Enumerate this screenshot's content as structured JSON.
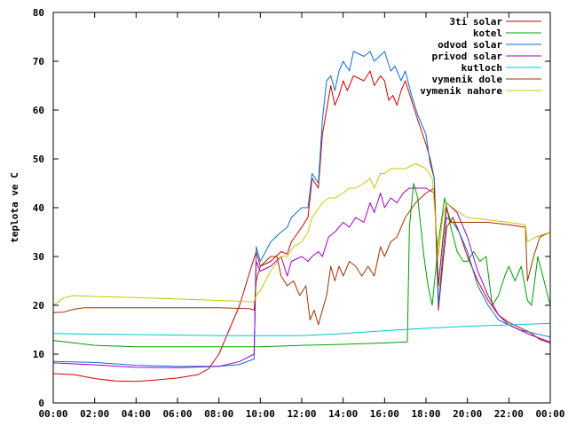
{
  "chart_data": {
    "type": "line",
    "ylabel": "teplota ve C",
    "xlabel": "",
    "title": "",
    "ylim": [
      0,
      80
    ],
    "xlim": [
      0,
      24
    ],
    "y_ticks": [
      0,
      10,
      20,
      30,
      40,
      50,
      60,
      70,
      80
    ],
    "x_ticks": [
      {
        "value": 0,
        "label": "00:00"
      },
      {
        "value": 2,
        "label": "02:00"
      },
      {
        "value": 4,
        "label": "04:00"
      },
      {
        "value": 6,
        "label": "06:00"
      },
      {
        "value": 8,
        "label": "08:00"
      },
      {
        "value": 10,
        "label": "10:00"
      },
      {
        "value": 12,
        "label": "12:00"
      },
      {
        "value": 14,
        "label": "14:00"
      },
      {
        "value": 16,
        "label": "16:00"
      },
      {
        "value": 18,
        "label": "18:00"
      },
      {
        "value": 20,
        "label": "20:00"
      },
      {
        "value": 22,
        "label": "22:00"
      },
      {
        "value": 24,
        "label": "00:00"
      }
    ],
    "grid": false,
    "legend_position": "top-right",
    "series": [
      {
        "name": "3ti solar",
        "color": "#d40000",
        "points": [
          [
            0,
            6
          ],
          [
            1,
            5.8
          ],
          [
            2,
            5
          ],
          [
            3,
            4.5
          ],
          [
            4,
            4.4
          ],
          [
            5,
            4.7
          ],
          [
            6,
            5.1
          ],
          [
            7,
            5.8
          ],
          [
            7.5,
            7
          ],
          [
            8,
            10
          ],
          [
            8.5,
            15
          ],
          [
            9,
            20
          ],
          [
            9.5,
            27
          ],
          [
            9.8,
            31
          ],
          [
            10,
            28
          ],
          [
            10.5,
            29
          ],
          [
            11,
            31
          ],
          [
            11.3,
            30.5
          ],
          [
            11.5,
            33
          ],
          [
            12,
            36
          ],
          [
            12.3,
            38
          ],
          [
            12.5,
            46
          ],
          [
            12.8,
            44
          ],
          [
            13,
            55
          ],
          [
            13.2,
            60
          ],
          [
            13.4,
            65
          ],
          [
            13.6,
            61
          ],
          [
            13.8,
            63
          ],
          [
            14,
            66
          ],
          [
            14.2,
            64
          ],
          [
            14.5,
            67
          ],
          [
            15,
            66
          ],
          [
            15.3,
            68
          ],
          [
            15.5,
            65
          ],
          [
            15.8,
            67
          ],
          [
            16,
            66
          ],
          [
            16.2,
            62
          ],
          [
            16.4,
            63
          ],
          [
            16.6,
            61
          ],
          [
            16.8,
            64
          ],
          [
            17,
            66
          ],
          [
            17.3,
            62
          ],
          [
            17.6,
            58
          ],
          [
            18,
            53
          ],
          [
            18.2,
            50
          ],
          [
            18.4,
            46
          ],
          [
            18.6,
            19
          ],
          [
            18.8,
            28
          ],
          [
            19,
            36
          ],
          [
            19.3,
            38
          ],
          [
            19.6,
            35
          ],
          [
            20,
            30
          ],
          [
            20.5,
            25
          ],
          [
            21,
            21
          ],
          [
            21.5,
            18
          ],
          [
            22,
            16.5
          ],
          [
            22.5,
            15.5
          ],
          [
            23,
            14.5
          ],
          [
            23.5,
            13
          ],
          [
            24,
            12.3
          ]
        ]
      },
      {
        "name": "kotel",
        "color": "#00a000",
        "points": [
          [
            0,
            12.8
          ],
          [
            1,
            12.3
          ],
          [
            2,
            11.8
          ],
          [
            4,
            11.5
          ],
          [
            6,
            11.5
          ],
          [
            8,
            11.5
          ],
          [
            10,
            11.5
          ],
          [
            12,
            11.8
          ],
          [
            14,
            12
          ],
          [
            16,
            12.3
          ],
          [
            17.1,
            12.5
          ],
          [
            17.2,
            36
          ],
          [
            17.4,
            45
          ],
          [
            17.6,
            42
          ],
          [
            17.9,
            30
          ],
          [
            18.1,
            24
          ],
          [
            18.3,
            20
          ],
          [
            18.6,
            33
          ],
          [
            18.9,
            42
          ],
          [
            19.2,
            36
          ],
          [
            19.5,
            31
          ],
          [
            19.8,
            29
          ],
          [
            20,
            29
          ],
          [
            20.3,
            31
          ],
          [
            20.6,
            29
          ],
          [
            20.9,
            30
          ],
          [
            21.2,
            20
          ],
          [
            21.5,
            22
          ],
          [
            21.8,
            26
          ],
          [
            22,
            28
          ],
          [
            22.3,
            25
          ],
          [
            22.6,
            28
          ],
          [
            22.9,
            21
          ],
          [
            23.1,
            20
          ],
          [
            23.4,
            30
          ],
          [
            23.7,
            25
          ],
          [
            24,
            20
          ]
        ]
      },
      {
        "name": "odvod solar",
        "color": "#0a70d0",
        "points": [
          [
            0,
            8.5
          ],
          [
            2,
            8.3
          ],
          [
            4,
            7.7
          ],
          [
            6,
            7.5
          ],
          [
            8,
            7.5
          ],
          [
            9,
            7.9
          ],
          [
            9.7,
            9
          ],
          [
            9.8,
            32
          ],
          [
            10,
            29
          ],
          [
            10.5,
            33
          ],
          [
            11,
            35
          ],
          [
            11.3,
            36
          ],
          [
            11.5,
            38
          ],
          [
            12,
            40
          ],
          [
            12.3,
            40
          ],
          [
            12.5,
            47
          ],
          [
            12.8,
            45
          ],
          [
            13,
            58
          ],
          [
            13.2,
            66
          ],
          [
            13.4,
            67
          ],
          [
            13.6,
            64
          ],
          [
            13.8,
            68
          ],
          [
            14,
            70
          ],
          [
            14.3,
            68
          ],
          [
            14.5,
            72
          ],
          [
            15,
            71
          ],
          [
            15.3,
            72
          ],
          [
            15.5,
            70
          ],
          [
            16,
            72
          ],
          [
            16.3,
            68
          ],
          [
            16.5,
            69
          ],
          [
            16.8,
            66
          ],
          [
            17,
            68
          ],
          [
            17.3,
            63
          ],
          [
            17.6,
            59
          ],
          [
            18,
            55
          ],
          [
            18.2,
            49
          ],
          [
            18.4,
            46
          ],
          [
            18.6,
            20
          ],
          [
            18.8,
            30
          ],
          [
            19,
            38
          ],
          [
            19.3,
            37
          ],
          [
            19.6,
            35
          ],
          [
            20,
            31
          ],
          [
            20.5,
            24
          ],
          [
            21,
            20
          ],
          [
            21.5,
            17
          ],
          [
            22,
            16
          ],
          [
            22.5,
            15
          ],
          [
            23,
            14.5
          ],
          [
            24,
            13.5
          ]
        ]
      },
      {
        "name": "privod solar",
        "color": "#a000c8",
        "points": [
          [
            0,
            8.2
          ],
          [
            2,
            7.8
          ],
          [
            4,
            7.3
          ],
          [
            6,
            7.2
          ],
          [
            8,
            7.5
          ],
          [
            9,
            8.5
          ],
          [
            9.7,
            10
          ],
          [
            9.8,
            29
          ],
          [
            10,
            27
          ],
          [
            10.5,
            28
          ],
          [
            11,
            30
          ],
          [
            11.3,
            26
          ],
          [
            11.5,
            29
          ],
          [
            12,
            30
          ],
          [
            12.3,
            29
          ],
          [
            12.5,
            30
          ],
          [
            12.8,
            31
          ],
          [
            13,
            30
          ],
          [
            13.3,
            34
          ],
          [
            13.6,
            35
          ],
          [
            14,
            37
          ],
          [
            14.3,
            36
          ],
          [
            14.6,
            38
          ],
          [
            15,
            37
          ],
          [
            15.3,
            41
          ],
          [
            15.5,
            39
          ],
          [
            15.8,
            43
          ],
          [
            16,
            40
          ],
          [
            16.3,
            42
          ],
          [
            16.6,
            41
          ],
          [
            16.9,
            43
          ],
          [
            17.2,
            44
          ],
          [
            17.5,
            44
          ],
          [
            18,
            44
          ],
          [
            18.4,
            43
          ],
          [
            18.6,
            24
          ],
          [
            18.8,
            33
          ],
          [
            19,
            41
          ],
          [
            19.5,
            39
          ],
          [
            20,
            34
          ],
          [
            20.5,
            27
          ],
          [
            21,
            22
          ],
          [
            21.5,
            18
          ],
          [
            22,
            16
          ],
          [
            23,
            14
          ],
          [
            24,
            12.5
          ]
        ]
      },
      {
        "name": "kutloch",
        "color": "#00c8c8",
        "points": [
          [
            0,
            14.2
          ],
          [
            4,
            14
          ],
          [
            8,
            13.8
          ],
          [
            12,
            13.8
          ],
          [
            14,
            14.2
          ],
          [
            16,
            14.8
          ],
          [
            18,
            15.3
          ],
          [
            20,
            15.7
          ],
          [
            22,
            16
          ],
          [
            24,
            16.3
          ]
        ]
      },
      {
        "name": "vymenik dole",
        "color": "#a03200",
        "points": [
          [
            0,
            18.5
          ],
          [
            0.5,
            18.6
          ],
          [
            1,
            19.2
          ],
          [
            1.5,
            19.5
          ],
          [
            4,
            19.5
          ],
          [
            8,
            19.5
          ],
          [
            9.5,
            19.3
          ],
          [
            9.7,
            19
          ],
          [
            9.8,
            25
          ],
          [
            10,
            28
          ],
          [
            10.5,
            30
          ],
          [
            10.8,
            30
          ],
          [
            11,
            26
          ],
          [
            11.3,
            24
          ],
          [
            11.6,
            25
          ],
          [
            11.9,
            22
          ],
          [
            12.2,
            24
          ],
          [
            12.4,
            17
          ],
          [
            12.6,
            19
          ],
          [
            12.8,
            16
          ],
          [
            13,
            19
          ],
          [
            13.2,
            22
          ],
          [
            13.4,
            28
          ],
          [
            13.6,
            25
          ],
          [
            13.8,
            28
          ],
          [
            14,
            26
          ],
          [
            14.3,
            29
          ],
          [
            14.6,
            28
          ],
          [
            14.9,
            26
          ],
          [
            15.2,
            28
          ],
          [
            15.5,
            26
          ],
          [
            15.8,
            32
          ],
          [
            16,
            30
          ],
          [
            16.3,
            33
          ],
          [
            16.6,
            34
          ],
          [
            17,
            38
          ],
          [
            17.5,
            41
          ],
          [
            18,
            43
          ],
          [
            18.4,
            44
          ],
          [
            18.6,
            24
          ],
          [
            18.8,
            33
          ],
          [
            19,
            40
          ],
          [
            19.2,
            37
          ],
          [
            19.5,
            37
          ],
          [
            20,
            37
          ],
          [
            21,
            37
          ],
          [
            22,
            36.5
          ],
          [
            22.8,
            36
          ],
          [
            22.9,
            25
          ],
          [
            23.2,
            30
          ],
          [
            23.5,
            34
          ],
          [
            24,
            35
          ]
        ]
      },
      {
        "name": "vymenik nahore",
        "color": "#c8c800",
        "points": [
          [
            0,
            20
          ],
          [
            0.5,
            21.5
          ],
          [
            1,
            22
          ],
          [
            2,
            21.8
          ],
          [
            4,
            21.6
          ],
          [
            6,
            21.3
          ],
          [
            8,
            21
          ],
          [
            9.7,
            20.7
          ],
          [
            9.8,
            22
          ],
          [
            10,
            23
          ],
          [
            10.5,
            27
          ],
          [
            11,
            30
          ],
          [
            11.3,
            30
          ],
          [
            11.6,
            32
          ],
          [
            12,
            33
          ],
          [
            12.3,
            35
          ],
          [
            12.5,
            38
          ],
          [
            13,
            41
          ],
          [
            13.3,
            42
          ],
          [
            13.6,
            42
          ],
          [
            14,
            43
          ],
          [
            14.3,
            44
          ],
          [
            14.6,
            44
          ],
          [
            15,
            45
          ],
          [
            15.3,
            46
          ],
          [
            15.5,
            44
          ],
          [
            15.8,
            47
          ],
          [
            16,
            47
          ],
          [
            16.3,
            48
          ],
          [
            17,
            48
          ],
          [
            17.5,
            49
          ],
          [
            18,
            48
          ],
          [
            18.3,
            46
          ],
          [
            18.6,
            30
          ],
          [
            18.8,
            38
          ],
          [
            19,
            41
          ],
          [
            19.3,
            40
          ],
          [
            19.6,
            39
          ],
          [
            20,
            38
          ],
          [
            21,
            37.5
          ],
          [
            22,
            37
          ],
          [
            22.8,
            36.5
          ],
          [
            22.9,
            33
          ],
          [
            23.3,
            34
          ],
          [
            24,
            35
          ]
        ]
      }
    ]
  }
}
